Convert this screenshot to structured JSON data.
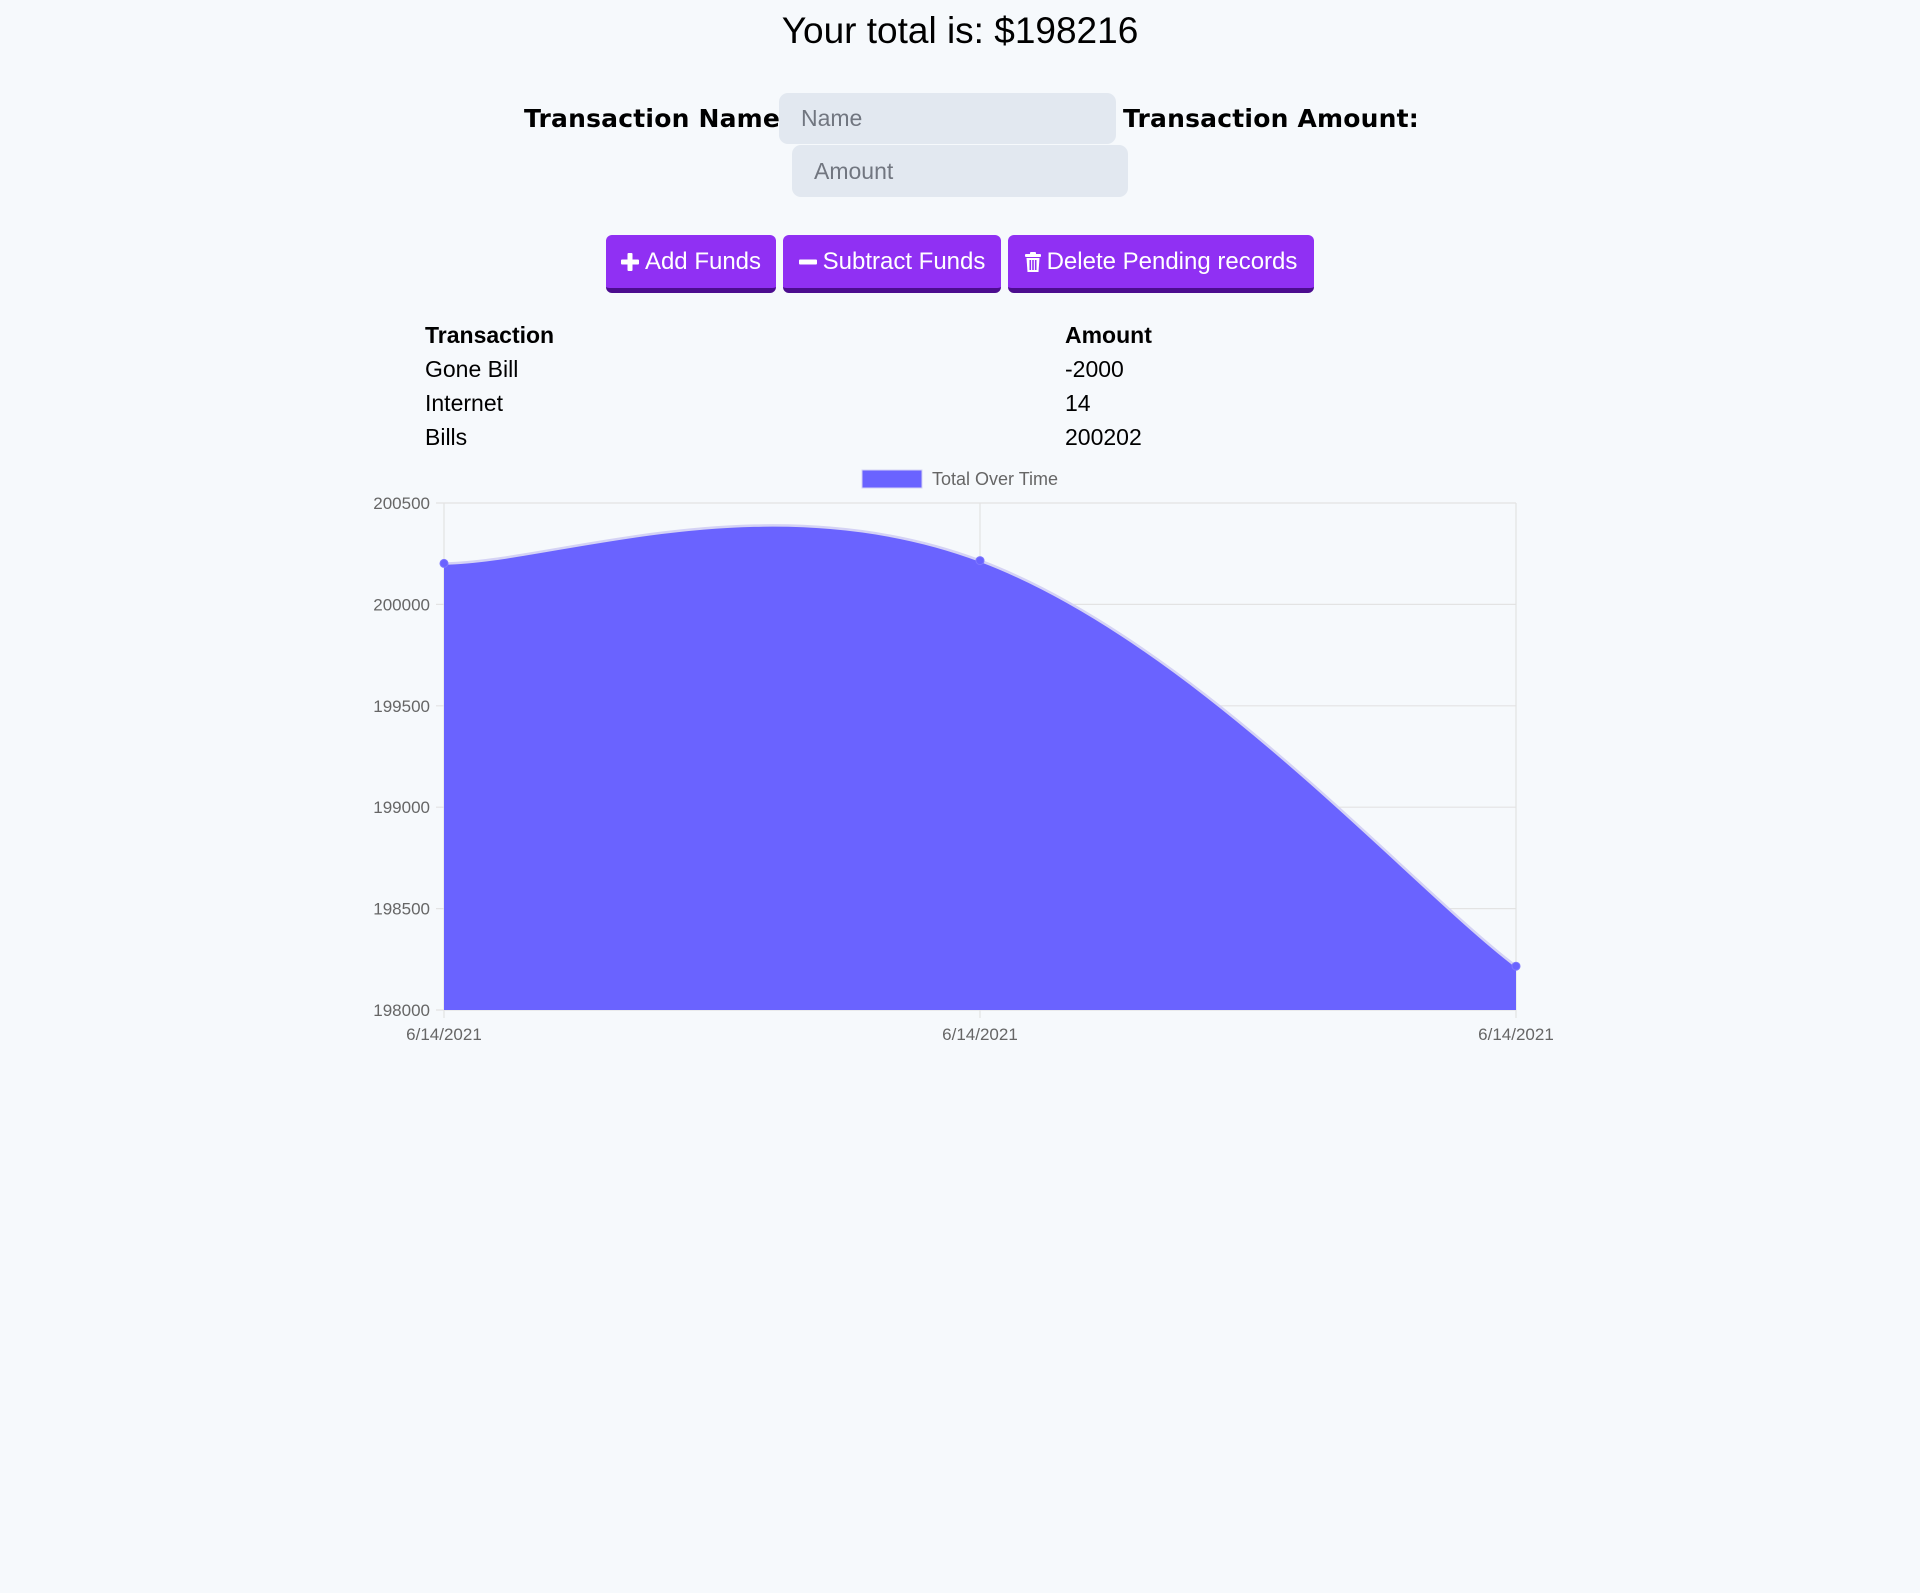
{
  "header": {
    "total_text": "Your total is: $198216"
  },
  "form": {
    "name_label": "Transaction Name:",
    "name_placeholder": "Name",
    "amount_label": "Transaction Amount:",
    "amount_placeholder": "Amount"
  },
  "buttons": {
    "add_label": "Add Funds",
    "subtract_label": "Subtract Funds",
    "delete_label": "Delete Pending records"
  },
  "icons": {
    "add": "plus-icon",
    "subtract": "minus-icon",
    "delete": "trash-icon"
  },
  "table": {
    "headers": [
      "Transaction",
      "Amount"
    ],
    "rows": [
      [
        "Gone Bill",
        "-2000"
      ],
      [
        "Internet",
        "14"
      ],
      [
        "Bills",
        "200202"
      ]
    ]
  },
  "colors": {
    "accent": "#9030f3",
    "accent_dark": "#4c0d8f",
    "input_bg": "#e2e8f0",
    "chart_fill": "#6a63ff",
    "background": "#f6f9fc"
  },
  "chart_data": {
    "type": "area",
    "x": [
      "6/14/2021",
      "6/14/2021",
      "6/14/2021"
    ],
    "series": [
      {
        "name": "Total Over Time",
        "values": [
          200202,
          200216,
          198216
        ]
      }
    ],
    "ylim": [
      198000,
      200500
    ],
    "yticks": [
      200500,
      200000,
      199500,
      199000,
      198500,
      198000
    ],
    "legend": "top-center",
    "grid": true
  }
}
